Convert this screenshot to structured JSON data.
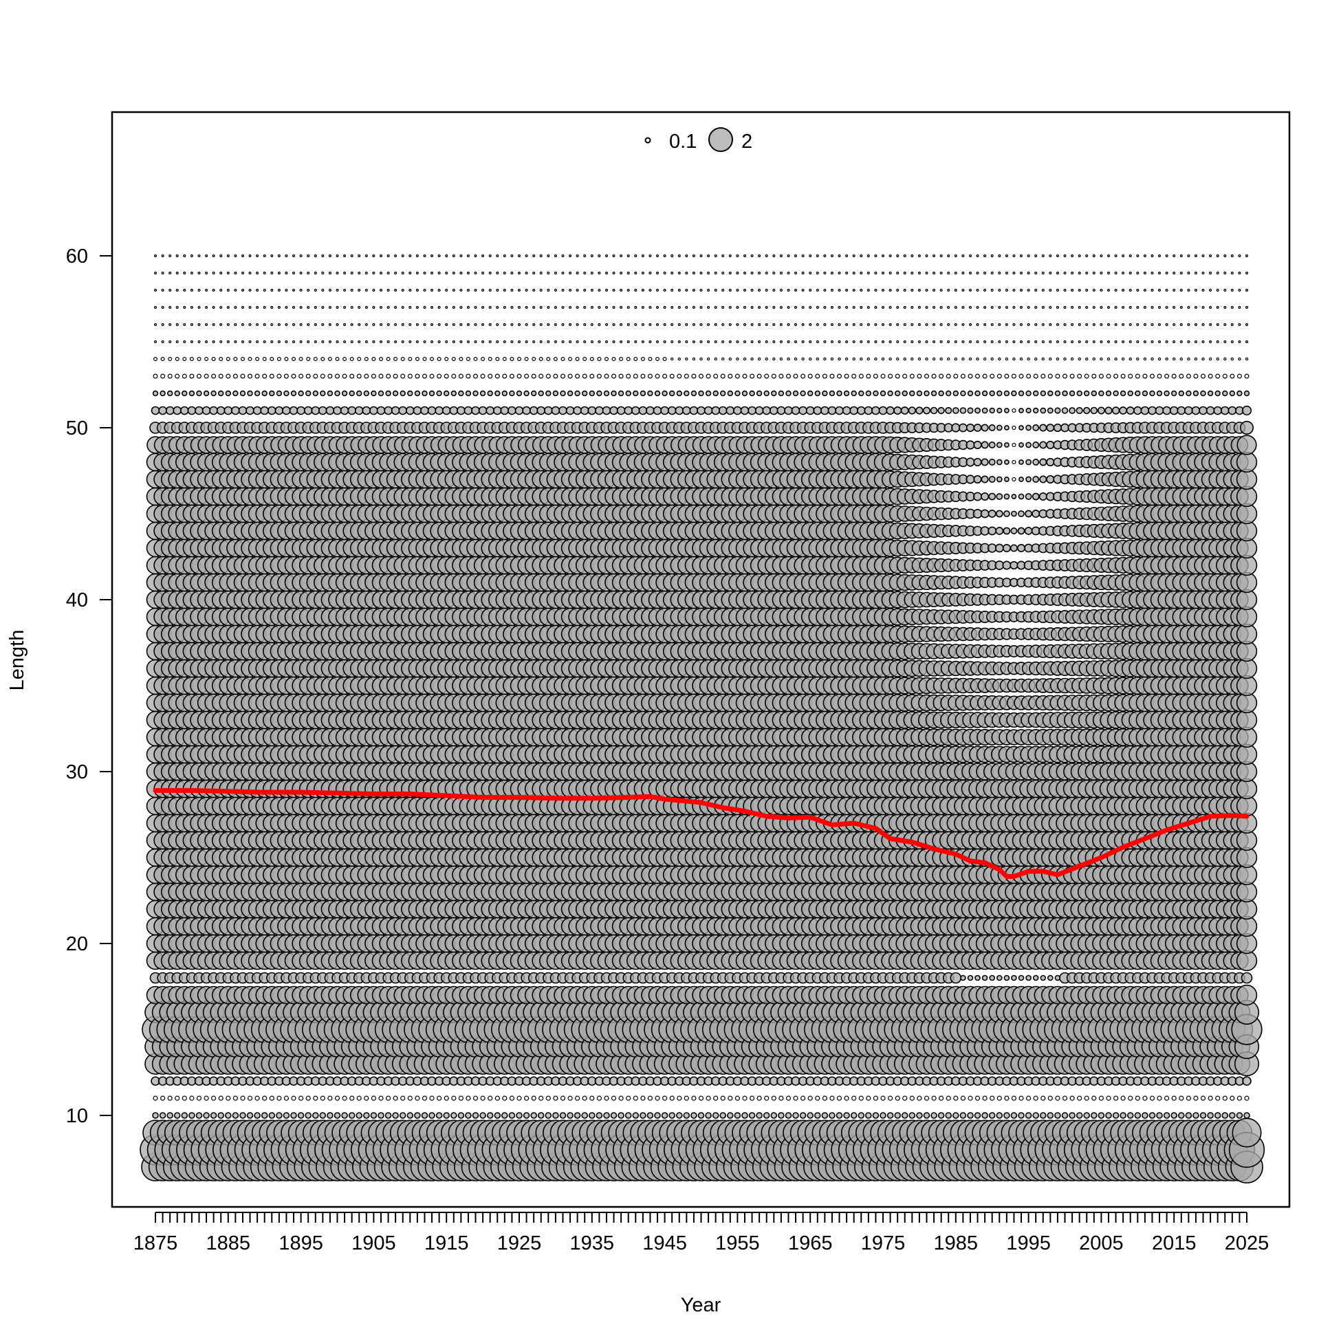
{
  "chart_data": {
    "type": "scatter",
    "subtype": "bubble",
    "title": "",
    "xlabel": "Year",
    "ylabel": "Length",
    "xlim": [
      1869,
      2030
    ],
    "ylim": [
      4.6,
      68.6
    ],
    "x_tick_labels": [
      "1875",
      "1885",
      "1895",
      "1905",
      "1915",
      "1925",
      "1935",
      "1945",
      "1955",
      "1965",
      "1975",
      "1985",
      "1995",
      "2005",
      "2015",
      "2025"
    ],
    "y_tick_labels": [
      "10",
      "20",
      "30",
      "40",
      "50",
      "60"
    ],
    "years": [
      1875,
      2025
    ],
    "length_bins": [
      7,
      60
    ],
    "legend": {
      "position": "top-center",
      "entries": [
        {
          "value": 0.1,
          "label": "0.1"
        },
        {
          "value": 2,
          "label": "2"
        }
      ]
    },
    "bubble_fill": "#aaaaaa",
    "bubble_stroke": "#000000",
    "line_color": "#ff0000",
    "mean_length_by_year": [
      [
        1875,
        28.9
      ],
      [
        1880,
        28.9
      ],
      [
        1885,
        28.85
      ],
      [
        1890,
        28.8
      ],
      [
        1895,
        28.8
      ],
      [
        1900,
        28.75
      ],
      [
        1905,
        28.7
      ],
      [
        1910,
        28.7
      ],
      [
        1915,
        28.6
      ],
      [
        1920,
        28.5
      ],
      [
        1925,
        28.5
      ],
      [
        1930,
        28.45
      ],
      [
        1935,
        28.45
      ],
      [
        1940,
        28.5
      ],
      [
        1943,
        28.55
      ],
      [
        1945,
        28.4
      ],
      [
        1950,
        28.2
      ],
      [
        1953,
        27.9
      ],
      [
        1956,
        27.7
      ],
      [
        1959,
        27.4
      ],
      [
        1962,
        27.3
      ],
      [
        1965,
        27.35
      ],
      [
        1968,
        26.9
      ],
      [
        1971,
        27.0
      ],
      [
        1974,
        26.7
      ],
      [
        1976,
        26.1
      ],
      [
        1979,
        25.9
      ],
      [
        1982,
        25.5
      ],
      [
        1985,
        25.2
      ],
      [
        1987,
        24.8
      ],
      [
        1989,
        24.7
      ],
      [
        1991,
        24.3
      ],
      [
        1992,
        23.9
      ],
      [
        1993,
        23.9
      ],
      [
        1995,
        24.2
      ],
      [
        1997,
        24.2
      ],
      [
        1999,
        24.0
      ],
      [
        2002,
        24.5
      ],
      [
        2005,
        25.0
      ],
      [
        2008,
        25.6
      ],
      [
        2011,
        26.1
      ],
      [
        2014,
        26.6
      ],
      [
        2017,
        27.0
      ],
      [
        2020,
        27.4
      ],
      [
        2023,
        27.45
      ],
      [
        2025,
        27.4
      ]
    ]
  }
}
